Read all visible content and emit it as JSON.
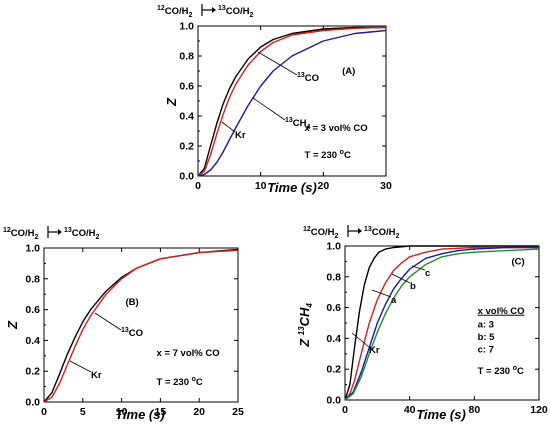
{
  "chart_data": [
    {
      "type": "line",
      "panel": "(A)",
      "header": {
        "left": "12CO/H2",
        "right": "13CO/H2"
      },
      "xlabel": "Time (s)",
      "ylabel": "Z",
      "xlim": [
        0,
        30
      ],
      "ylim": [
        0,
        1.0
      ],
      "xticks": [
        0,
        10,
        20,
        30
      ],
      "yticks": [
        0.0,
        0.2,
        0.4,
        0.6,
        0.8,
        1.0
      ],
      "series": [
        {
          "name": "Kr",
          "color": "#000000",
          "x": [
            0,
            1,
            2,
            3,
            4,
            5,
            6,
            8,
            10,
            12,
            15,
            20,
            25,
            30
          ],
          "y": [
            0,
            0.05,
            0.2,
            0.35,
            0.48,
            0.58,
            0.66,
            0.78,
            0.86,
            0.91,
            0.95,
            0.98,
            0.99,
            0.99
          ]
        },
        {
          "name": "13CO",
          "color": "#d42020",
          "x": [
            0,
            1,
            2,
            3,
            4,
            5,
            6,
            8,
            10,
            12,
            15,
            20,
            25,
            30
          ],
          "y": [
            0,
            0.03,
            0.14,
            0.28,
            0.41,
            0.52,
            0.61,
            0.74,
            0.83,
            0.89,
            0.94,
            0.97,
            0.985,
            0.99
          ]
        },
        {
          "name": "13CH4",
          "color": "#1c1c9c",
          "x": [
            0,
            1,
            2,
            3,
            4,
            5,
            6,
            8,
            10,
            12,
            15,
            20,
            25,
            30
          ],
          "y": [
            0,
            0.01,
            0.04,
            0.09,
            0.16,
            0.24,
            0.32,
            0.47,
            0.6,
            0.7,
            0.8,
            0.9,
            0.95,
            0.97
          ]
        }
      ],
      "annotations": [
        {
          "text": "(A)",
          "x": 23,
          "y": 0.68
        },
        {
          "text": "x = 3 vol% CO",
          "x": 17,
          "y": 0.3
        },
        {
          "text": "T = 230 °C",
          "x": 17,
          "y": 0.12
        }
      ],
      "labels": [
        "Kr",
        "13CO",
        "13CH4"
      ]
    },
    {
      "type": "line",
      "panel": "(B)",
      "header": {
        "left": "12CO/H2",
        "right": "13CO/H2"
      },
      "xlabel": "Time (s)",
      "ylabel": "Z",
      "xlim": [
        0,
        25
      ],
      "ylim": [
        0,
        1.0
      ],
      "xticks": [
        0,
        5,
        10,
        15,
        20,
        25
      ],
      "yticks": [
        0.0,
        0.2,
        0.4,
        0.6,
        0.8,
        1.0
      ],
      "series": [
        {
          "name": "Kr",
          "color": "#000000",
          "x": [
            0,
            1,
            2,
            3,
            4,
            5,
            6,
            8,
            10,
            12,
            15,
            20,
            25
          ],
          "y": [
            0,
            0.06,
            0.18,
            0.31,
            0.42,
            0.52,
            0.6,
            0.72,
            0.81,
            0.87,
            0.93,
            0.97,
            0.99
          ]
        },
        {
          "name": "13CO",
          "color": "#d42020",
          "x": [
            0,
            1,
            2,
            3,
            4,
            5,
            6,
            8,
            10,
            12,
            15,
            20,
            25
          ],
          "y": [
            0,
            0.03,
            0.12,
            0.24,
            0.36,
            0.47,
            0.56,
            0.7,
            0.8,
            0.87,
            0.93,
            0.97,
            0.985
          ]
        }
      ],
      "annotations": [
        {
          "text": "(B)",
          "x": 10.5,
          "y": 0.63
        },
        {
          "text": "x = 7 vol% CO",
          "x": 14.5,
          "y": 0.3
        },
        {
          "text": "T = 230 °C",
          "x": 14.5,
          "y": 0.11
        }
      ],
      "labels": [
        "Kr",
        "13CO"
      ]
    },
    {
      "type": "line",
      "panel": "(C)",
      "header": {
        "left": "12CO/H2",
        "right": "13CO/H2"
      },
      "xlabel": "Time (s)",
      "ylabel": "Z 13CH4",
      "xlim": [
        0,
        120
      ],
      "ylim": [
        0,
        1.0
      ],
      "xticks": [
        0,
        40,
        80,
        120
      ],
      "yticks": [
        0.0,
        0.2,
        0.4,
        0.6,
        0.8,
        1.0
      ],
      "series": [
        {
          "name": "Kr",
          "color": "#000000",
          "x": [
            0,
            3,
            6,
            9,
            12,
            15,
            18,
            21,
            25,
            30,
            40,
            60,
            80,
            100,
            120
          ],
          "y": [
            0,
            0.1,
            0.35,
            0.58,
            0.75,
            0.86,
            0.92,
            0.96,
            0.98,
            0.99,
            1.0,
            1.0,
            1.0,
            1.0,
            1.0
          ]
        },
        {
          "name": "a",
          "color": "#d42020",
          "x": [
            0,
            3,
            6,
            10,
            15,
            20,
            25,
            30,
            35,
            40,
            50,
            60,
            80,
            100,
            120
          ],
          "y": [
            0,
            0.04,
            0.13,
            0.3,
            0.5,
            0.65,
            0.76,
            0.84,
            0.89,
            0.93,
            0.96,
            0.98,
            0.99,
            0.99,
            0.99
          ]
        },
        {
          "name": "b",
          "color": "#1c1c9c",
          "x": [
            0,
            5,
            10,
            15,
            20,
            25,
            30,
            35,
            40,
            50,
            60,
            70,
            80,
            100,
            120
          ],
          "y": [
            0,
            0.05,
            0.18,
            0.34,
            0.5,
            0.62,
            0.72,
            0.79,
            0.85,
            0.92,
            0.95,
            0.97,
            0.98,
            0.99,
            0.99
          ]
        },
        {
          "name": "c",
          "color": "#1e8a3a",
          "x": [
            0,
            5,
            10,
            15,
            20,
            25,
            30,
            35,
            40,
            50,
            60,
            70,
            80,
            100,
            120
          ],
          "y": [
            0,
            0.04,
            0.15,
            0.3,
            0.44,
            0.56,
            0.66,
            0.74,
            0.8,
            0.88,
            0.93,
            0.95,
            0.96,
            0.97,
            0.98
          ]
        }
      ],
      "annotations": [
        {
          "text": "(C)",
          "x": 103,
          "y": 0.88
        },
        {
          "text": "x vol% CO",
          "x": 82,
          "y": 0.56
        },
        {
          "text": "a: 3",
          "x": 82,
          "y": 0.47
        },
        {
          "text": "b: 5",
          "x": 82,
          "y": 0.39
        },
        {
          "text": "c: 7",
          "x": 82,
          "y": 0.31
        },
        {
          "text": "T = 230 °C",
          "x": 82,
          "y": 0.17
        }
      ],
      "labels": [
        "Kr",
        "a",
        "b",
        "c"
      ]
    }
  ]
}
